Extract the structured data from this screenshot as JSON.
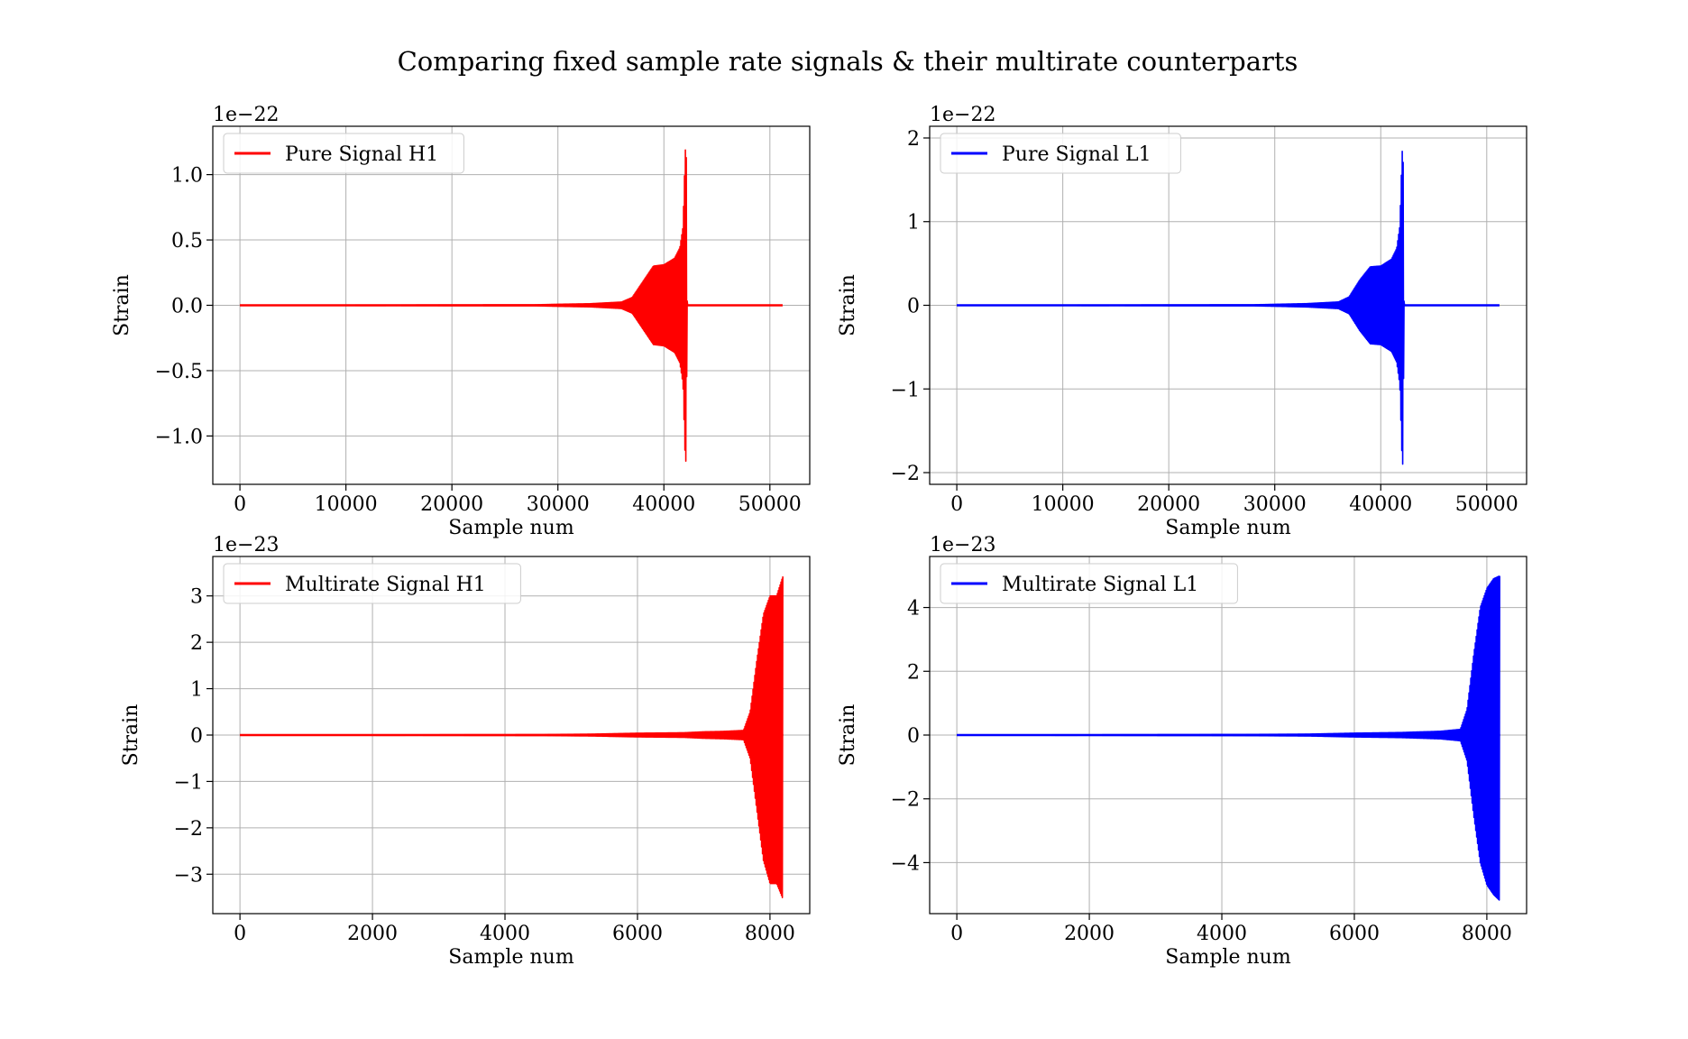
{
  "figure": {
    "title": "Comparing fixed sample rate signals & their multirate counterparts"
  },
  "chart_data": [
    {
      "type": "line",
      "legend": "Pure Signal H1",
      "legend_placement": "upper-left",
      "color": "#ff0000",
      "xlabel": "Sample num",
      "ylabel": "Strain",
      "offset_text": "1e−22",
      "grid": true,
      "xlim": [
        -2560,
        53760
      ],
      "ylim": [
        -1.37,
        1.37
      ],
      "xticks": [
        0,
        10000,
        20000,
        30000,
        40000,
        50000
      ],
      "xtick_labels": [
        "0",
        "10000",
        "20000",
        "30000",
        "40000",
        "50000"
      ],
      "yticks": [
        -1.0,
        -0.5,
        0.0,
        0.5,
        1.0
      ],
      "ytick_labels": [
        "−1.0",
        "−0.5",
        "0.0",
        "0.5",
        "1.0"
      ],
      "envelope": {
        "x": [
          0,
          28000,
          30000,
          33000,
          36000,
          37000,
          38000,
          39000,
          40000,
          41000,
          41500,
          41800,
          42000,
          42100,
          42200,
          51200
        ],
        "upper": [
          0,
          0.004,
          0.008,
          0.012,
          0.025,
          0.06,
          0.18,
          0.3,
          0.31,
          0.36,
          0.44,
          0.6,
          1.15,
          1.29,
          0,
          0
        ],
        "lower": [
          0,
          -0.004,
          -0.008,
          -0.012,
          -0.025,
          -0.06,
          -0.18,
          -0.3,
          -0.31,
          -0.36,
          -0.44,
          -0.6,
          -1.15,
          -1.21,
          0,
          0
        ]
      }
    },
    {
      "type": "line",
      "legend": "Pure Signal L1",
      "legend_placement": "upper-left",
      "color": "#0000ff",
      "xlabel": "Sample num",
      "ylabel": "Strain",
      "offset_text": "1e−22",
      "grid": true,
      "xlim": [
        -2560,
        53760
      ],
      "ylim": [
        -2.14,
        2.14
      ],
      "xticks": [
        0,
        10000,
        20000,
        30000,
        40000,
        50000
      ],
      "xtick_labels": [
        "0",
        "10000",
        "20000",
        "30000",
        "40000",
        "50000"
      ],
      "yticks": [
        -2,
        -1,
        0,
        1,
        2
      ],
      "ytick_labels": [
        "−2",
        "−1",
        "0",
        "1",
        "2"
      ],
      "envelope": {
        "x": [
          0,
          28000,
          30000,
          33000,
          36000,
          37000,
          38000,
          39000,
          40000,
          41000,
          41500,
          41800,
          42000,
          42100,
          42200,
          51200
        ],
        "upper": [
          0,
          0.006,
          0.012,
          0.02,
          0.04,
          0.1,
          0.3,
          0.46,
          0.47,
          0.55,
          0.68,
          0.95,
          1.8,
          1.95,
          0,
          0
        ],
        "lower": [
          0,
          -0.006,
          -0.012,
          -0.02,
          -0.04,
          -0.1,
          -0.3,
          -0.46,
          -0.47,
          -0.55,
          -0.68,
          -0.95,
          -1.8,
          -1.94,
          0,
          0
        ]
      }
    },
    {
      "type": "line",
      "legend": "Multirate Signal H1",
      "legend_placement": "upper-left",
      "color": "#ff0000",
      "xlabel": "Sample num",
      "ylabel": "Strain",
      "offset_text": "1e−23",
      "grid": true,
      "xlim": [
        -410,
        8600
      ],
      "ylim": [
        -3.85,
        3.85
      ],
      "xticks": [
        0,
        2000,
        4000,
        6000,
        8000
      ],
      "xtick_labels": [
        "0",
        "2000",
        "4000",
        "6000",
        "8000"
      ],
      "yticks": [
        -3,
        -2,
        -1,
        0,
        1,
        2,
        3
      ],
      "ytick_labels": [
        "−3",
        "−2",
        "−1",
        "0",
        "1",
        "2",
        "3"
      ],
      "envelope": {
        "x": [
          0,
          4500,
          5300,
          6000,
          6700,
          7000,
          7300,
          7600,
          7700,
          7800,
          7900,
          8000,
          8100,
          8200
        ],
        "upper": [
          0,
          0.01,
          0.02,
          0.04,
          0.05,
          0.07,
          0.08,
          0.1,
          0.5,
          1.6,
          2.6,
          3.0,
          3.0,
          3.45
        ],
        "lower": [
          0,
          -0.01,
          -0.02,
          -0.04,
          -0.05,
          -0.07,
          -0.08,
          -0.1,
          -0.5,
          -1.6,
          -2.7,
          -3.2,
          -3.2,
          -3.55
        ]
      }
    },
    {
      "type": "line",
      "legend": "Multirate Signal L1",
      "legend_placement": "upper-left",
      "color": "#0000ff",
      "xlabel": "Sample num",
      "ylabel": "Strain",
      "offset_text": "1e−23",
      "grid": true,
      "xlim": [
        -410,
        8600
      ],
      "ylim": [
        -5.6,
        5.6
      ],
      "xticks": [
        0,
        2000,
        4000,
        6000,
        8000
      ],
      "xtick_labels": [
        "0",
        "2000",
        "4000",
        "6000",
        "8000"
      ],
      "yticks": [
        -4,
        -2,
        0,
        2,
        4
      ],
      "ytick_labels": [
        "−4",
        "−2",
        "0",
        "2",
        "4"
      ],
      "envelope": {
        "x": [
          0,
          4500,
          5300,
          6000,
          6700,
          7000,
          7300,
          7600,
          7700,
          7800,
          7900,
          8000,
          8100,
          8200
        ],
        "upper": [
          0,
          0.02,
          0.03,
          0.06,
          0.08,
          0.1,
          0.12,
          0.18,
          0.8,
          2.5,
          4.0,
          4.6,
          4.9,
          5.0
        ],
        "lower": [
          0,
          -0.02,
          -0.03,
          -0.06,
          -0.08,
          -0.1,
          -0.12,
          -0.18,
          -0.8,
          -2.5,
          -4.0,
          -4.7,
          -5.0,
          -5.2
        ]
      }
    }
  ]
}
